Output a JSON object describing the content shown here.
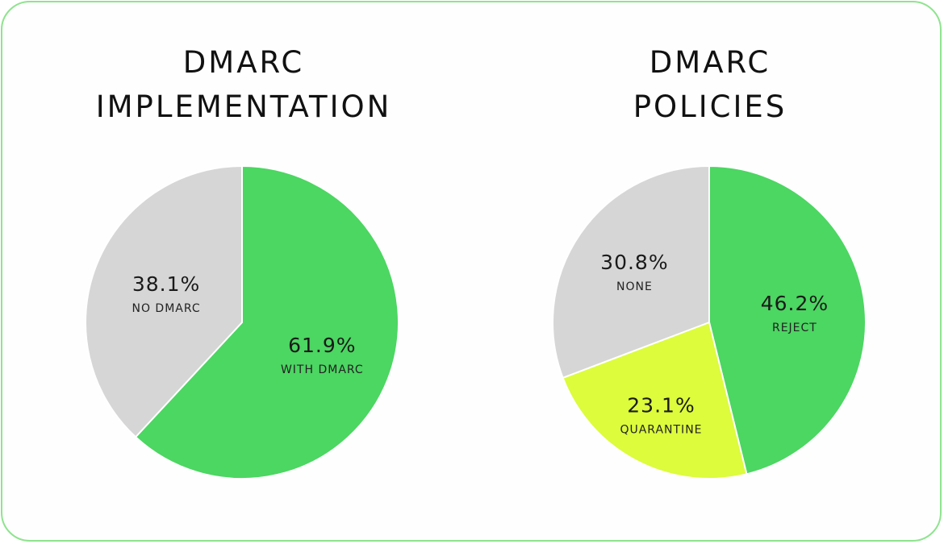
{
  "colors": {
    "card_border": "#8fe38f",
    "green": "#4cd662",
    "gray": "#d6d6d6",
    "lime": "#dcfc3c"
  },
  "chart_data": [
    {
      "type": "pie",
      "title_lines": [
        "DMARC",
        "IMPLEMENTATION"
      ],
      "slices": [
        {
          "label": "WITH DMARC",
          "value": 61.9,
          "value_text": "61.9%",
          "color": "#4cd662"
        },
        {
          "label": "NO DMARC",
          "value": 38.1,
          "value_text": "38.1%",
          "color": "#d6d6d6"
        }
      ]
    },
    {
      "type": "pie",
      "title_lines": [
        "DMARC",
        "POLICIES"
      ],
      "slices": [
        {
          "label": "REJECT",
          "value": 46.2,
          "value_text": "46.2%",
          "color": "#4cd662"
        },
        {
          "label": "QUARANTINE",
          "value": 23.1,
          "value_text": "23.1%",
          "color": "#dcfc3c"
        },
        {
          "label": "NONE",
          "value": 30.8,
          "value_text": "30.8%",
          "color": "#d6d6d6"
        }
      ]
    }
  ]
}
